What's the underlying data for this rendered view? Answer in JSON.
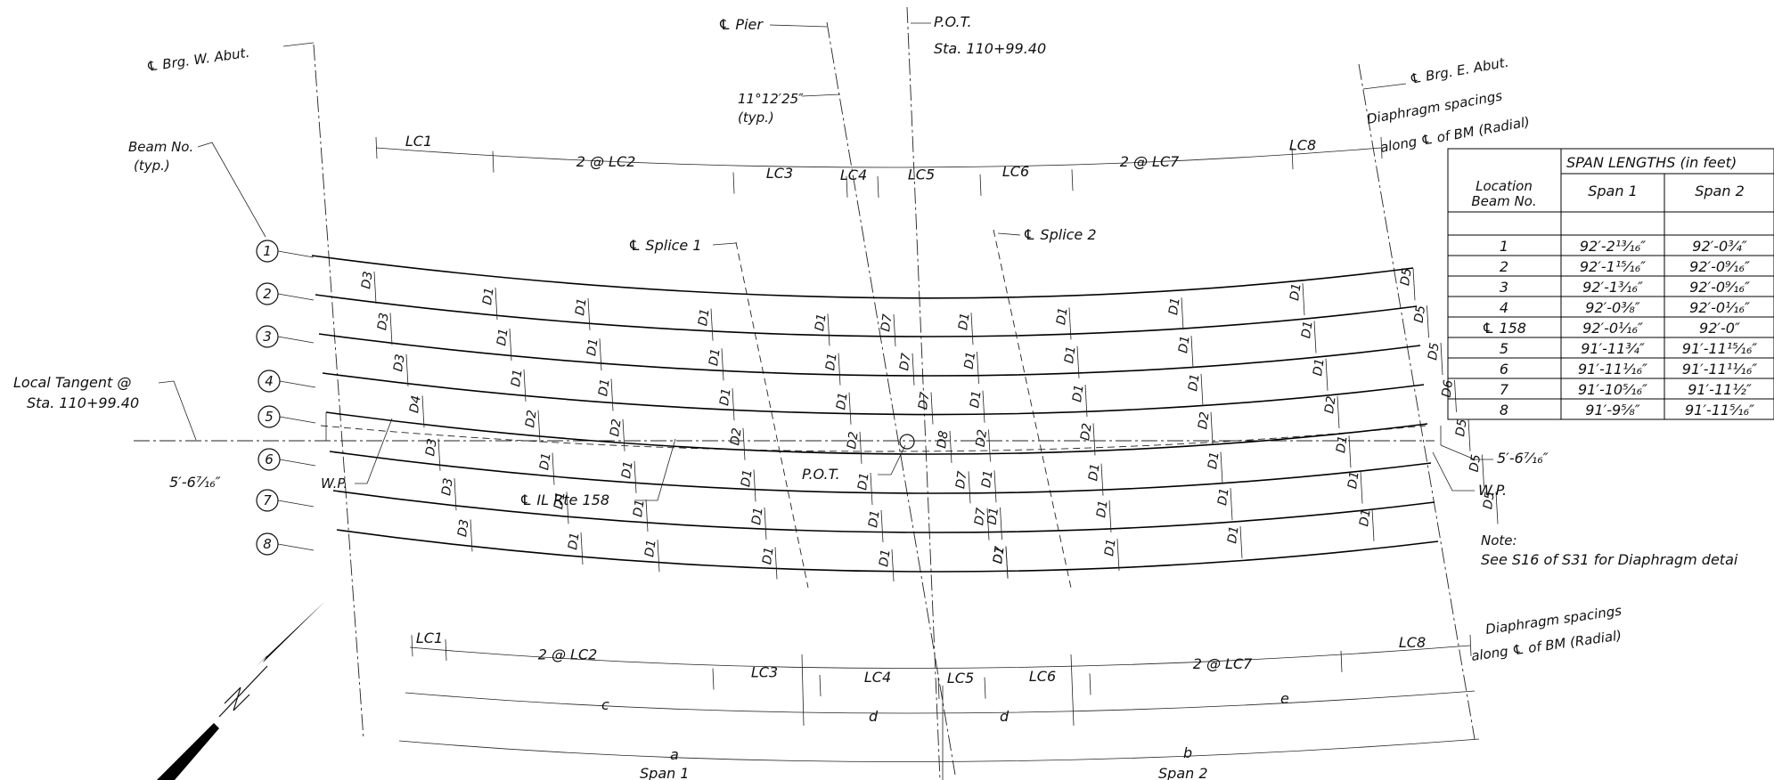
{
  "labels": {
    "brg_w_abut": "℄ Brg. W. Abut.",
    "pier": "℄ Pier",
    "pot_label": "P.O.T.",
    "pot_station": "Sta. 110+99.40",
    "brg_e_abut": "℄ Brg. E. Abut.",
    "skew_angle": "11°12′25″",
    "skew_typ": "(typ.)",
    "diaphragm_top_1": "Diaphragm spacings",
    "diaphragm_top_2": "along ℄ of BM (Radial)",
    "beam_no_1": "Beam No.",
    "beam_no_2": "(typ.)",
    "splice_1": "℄ Splice 1",
    "splice_2": "℄ Splice 2",
    "local_tangent_1": "Local Tangent @",
    "local_tangent_2": "Sta. 110+99.40",
    "offset_left": "5′-6⁷⁄₁₆″",
    "offset_right": "5′-6⁷⁄₁₆″",
    "wp_left": "W.P.",
    "wp_right": "W.P.",
    "pot_center": "P.O.T.",
    "il_rte": "℄ IL Rte 158",
    "note_title": "Note:",
    "note_body": "See S16 of S31 for Diaphragm detai",
    "diaphragm_bot_1": "Diaphragm spacings",
    "diaphragm_bot_2": "along ℄ of BM (Radial)",
    "dim_a": "a",
    "dim_b": "b",
    "dim_c": "c",
    "dim_d1": "d",
    "dim_d2": "d",
    "dim_e": "e",
    "span_1": "Span 1",
    "span_2": "Span 2"
  },
  "top_spacings": [
    "LC1",
    "2 @ LC2",
    "LC3",
    "LC4",
    "LC5",
    "LC6",
    "2 @ LC7",
    "LC8"
  ],
  "bottom_spacings": [
    "LC1",
    "2 @ LC2",
    "LC3",
    "LC4",
    "LC5",
    "LC6",
    "2 @ LC7",
    "LC8"
  ],
  "beam_numbers": [
    "1",
    "2",
    "3",
    "4",
    "5",
    "6",
    "7",
    "8"
  ],
  "diaphragm_rows": [
    [
      "D3",
      "D1",
      "D1",
      "D1",
      "D1",
      "D7",
      "D1",
      "D1",
      "D1",
      "D1",
      "D5"
    ],
    [
      "D3",
      "D1",
      "D1",
      "D1",
      "D1",
      "D7",
      "D1",
      "D1",
      "D1",
      "D1",
      "D5"
    ],
    [
      "D3",
      "D1",
      "D1",
      "D1",
      "D1",
      "D7",
      "D1",
      "D1",
      "D1",
      "D1",
      "D5"
    ],
    [
      "D4",
      "D2",
      "D2",
      "D2",
      "D2",
      "D8",
      "D2",
      "D2",
      "D2",
      "D2",
      "D6"
    ],
    [
      "D3",
      "D1",
      "D1",
      "D1",
      "D1",
      "D7",
      "D1",
      "D1",
      "D1",
      "D1",
      "D5"
    ],
    [
      "D3",
      "D1",
      "D1",
      "D1",
      "D1",
      "D7",
      "D1",
      "D1",
      "D1",
      "D1",
      "D5"
    ],
    [
      "D3",
      "D1",
      "D1",
      "D1",
      "D1",
      "D7",
      "D1",
      "D1",
      "D1",
      "D1",
      "D5"
    ]
  ],
  "span_table": {
    "title": "SPAN LENGTHS (in feet)",
    "header_location_1": "Location",
    "header_location_2": "Beam No.",
    "header_span_1": "Span 1",
    "header_span_2": "Span 2",
    "rows": [
      {
        "beam": "1",
        "span1": "92′-2¹³⁄₁₆″",
        "span2": "92′-0³⁄₄″"
      },
      {
        "beam": "2",
        "span1": "92′-1¹⁵⁄₁₆″",
        "span2": "92′-0⁹⁄₁₆″"
      },
      {
        "beam": "3",
        "span1": "92′-1³⁄₁₆″",
        "span2": "92′-0⁹⁄₁₆″"
      },
      {
        "beam": "4",
        "span1": "92′-0³⁄₈″",
        "span2": "92′-0¹⁄₁₆″"
      },
      {
        "beam": "℄ 158",
        "span1": "92′-0¹⁄₁₆″",
        "span2": "92′-0″"
      },
      {
        "beam": "5",
        "span1": "91′-11³⁄₄″",
        "span2": "91′-11¹⁵⁄₁₆″"
      },
      {
        "beam": "6",
        "span1": "91′-11¹⁄₁₆″",
        "span2": "91′-11¹¹⁄₁₆″"
      },
      {
        "beam": "7",
        "span1": "91′-10⁵⁄₁₆″",
        "span2": "91′-11¹⁄₂″"
      },
      {
        "beam": "8",
        "span1": "91′-9⁵⁄₈″",
        "span2": "91′-11⁵⁄₁₆″"
      }
    ]
  }
}
